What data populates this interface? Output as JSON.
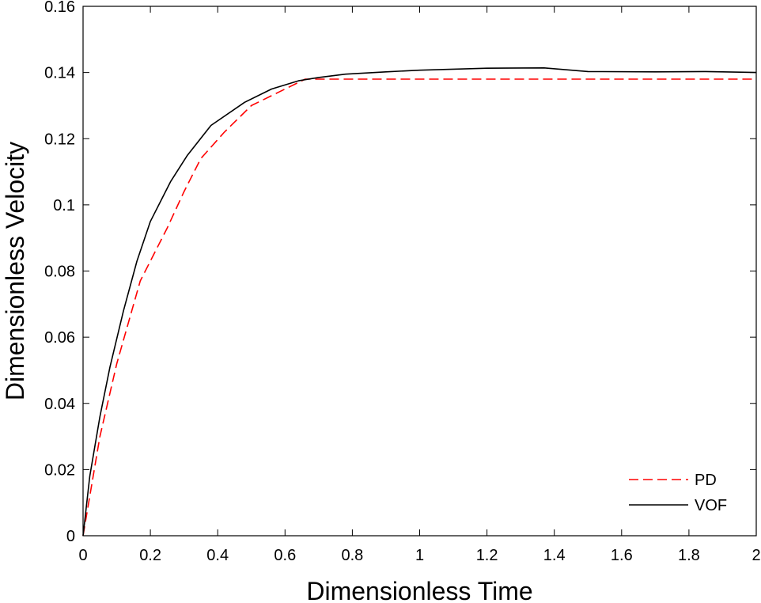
{
  "chart_data": {
    "type": "line",
    "title": "",
    "xlabel": "Dimensionless Time",
    "ylabel": "Dimensionless Velocity",
    "xlim": [
      0,
      2
    ],
    "ylim": [
      0,
      0.16
    ],
    "xticks": [
      0,
      0.2,
      0.4,
      0.6,
      0.8,
      1,
      1.2,
      1.4,
      1.6,
      1.8,
      2
    ],
    "xtick_labels": [
      "0",
      "0.2",
      "0.4",
      "0.6",
      "0.8",
      "1",
      "1.2",
      "1.4",
      "1.6",
      "1.8",
      "2"
    ],
    "yticks": [
      0,
      0.02,
      0.04,
      0.06,
      0.08,
      0.1,
      0.12,
      0.14,
      0.16
    ],
    "ytick_labels": [
      "0",
      "0.02",
      "0.04",
      "0.06",
      "0.08",
      "0.1",
      "0.12",
      "0.14",
      "0.16"
    ],
    "grid": false,
    "legend_position": "bottom-right",
    "series": [
      {
        "name": "PD",
        "color": "#ff0000",
        "style": "dashed",
        "x": [
          0,
          0.05,
          0.1,
          0.17,
          0.25,
          0.3,
          0.35,
          0.42,
          0.5,
          0.58,
          0.66,
          2.0
        ],
        "y": [
          0,
          0.03,
          0.052,
          0.077,
          0.093,
          0.104,
          0.114,
          0.122,
          0.13,
          0.134,
          0.138,
          0.138
        ]
      },
      {
        "name": "VOF",
        "color": "#000000",
        "style": "solid",
        "x": [
          0,
          0.02,
          0.05,
          0.08,
          0.12,
          0.16,
          0.2,
          0.26,
          0.31,
          0.38,
          0.48,
          0.56,
          0.64,
          0.7,
          0.78,
          0.9,
          1.0,
          1.2,
          1.37,
          1.5,
          1.7,
          1.85,
          2.0
        ],
        "y": [
          0,
          0.018,
          0.036,
          0.051,
          0.068,
          0.083,
          0.095,
          0.107,
          0.115,
          0.124,
          0.131,
          0.135,
          0.1375,
          0.1385,
          0.1395,
          0.1402,
          0.1407,
          0.1413,
          0.1414,
          0.1403,
          0.1402,
          0.1403,
          0.14
        ]
      }
    ]
  }
}
